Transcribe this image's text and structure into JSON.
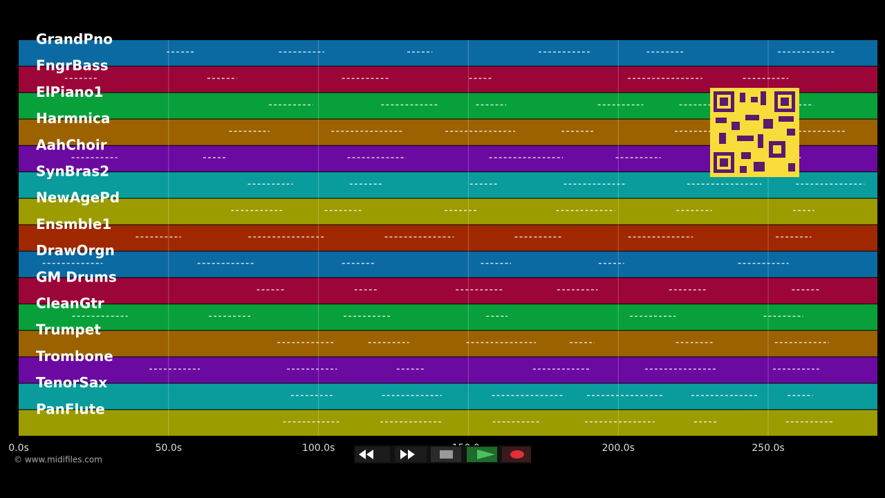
{
  "tracks": [
    "GrandPno",
    "FngrBass",
    "ElPiano1",
    "Harmnica",
    "AahChoir",
    "SynBras2",
    "NewAgePd",
    "Ensmble1",
    "DrawOrgn",
    "GM Drums",
    "CleanGtr",
    "Trumpet",
    "Trombone",
    "TenorSax",
    "PanFlute"
  ],
  "timeline": {
    "ticks": [
      "0.0s",
      "50.0s",
      "100.0s",
      "150.0s",
      "200.0s",
      "250.0s"
    ]
  },
  "footer": {
    "copyright": "© www.midifiles.com"
  }
}
